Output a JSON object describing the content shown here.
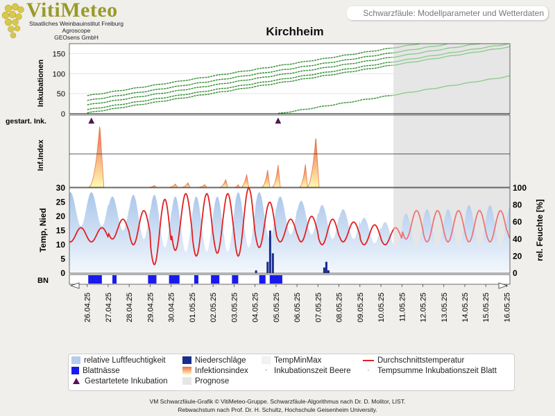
{
  "header": {
    "logo_text": "VitiMeteo",
    "logo_lines": [
      "Staatliches Weinbauinstitut Freiburg",
      "Agroscope",
      "GEOsens GmbH"
    ],
    "subtitle": "Schwarzfäule: Modellparameter und Wetterdaten",
    "title": "Kirchheim"
  },
  "panel_labels": {
    "inkubationen": "Inkubationen",
    "gestartet": "gestart. Ink.",
    "infindex": "Inf.Index",
    "temp": "Temp, Nied",
    "feuchte": "rel. Feuchte [%]",
    "bn": "BN"
  },
  "colors": {
    "humidity": "#b4cdec",
    "precip": "#1a2c8c",
    "leafwet": "#1a1aee",
    "temp_line": "#e02020",
    "temp_forecast": "#ec7474",
    "incubation": "#2e8b2e",
    "incubation_forecast": "#8fca8f",
    "infection_top": "#ee6a50",
    "infection_bottom": "#fffab0",
    "forecast_bg": "#e6e6e6",
    "marker": "#5a1060"
  },
  "chart_data": {
    "type": "line",
    "dates": [
      "26.04.25",
      "27.04.25",
      "28.04.25",
      "29.04.25",
      "30.04.25",
      "01.05.25",
      "02.05.25",
      "03.05.25",
      "04.05.25",
      "05.05.25",
      "06.05.25",
      "07.05.25",
      "08.05.25",
      "09.05.25",
      "10.05.25",
      "11.05.25",
      "12.05.25",
      "13.05.25",
      "14.05.25",
      "15.05.25",
      "16.05.25"
    ],
    "forecast_start_day": 14.6,
    "panels": {
      "incubations": {
        "yticks": [
          0,
          50,
          100,
          150
        ],
        "ylim": [
          0,
          175
        ],
        "series": [
          {
            "start": 0,
            "y0": 45,
            "slope": 8.2
          },
          {
            "start": 0,
            "y0": 33,
            "slope": 8.2
          },
          {
            "start": 0,
            "y0": 22,
            "slope": 8.2
          },
          {
            "start": 0,
            "y0": 10,
            "slope": 8.2
          },
          {
            "start": 0,
            "y0": 2,
            "slope": 8.2
          },
          {
            "start": 9.1,
            "y0": 0,
            "slope": 8.5
          }
        ]
      },
      "started_incubations": {
        "days": [
          0.2,
          9.1
        ]
      },
      "infection_index": {
        "ylim": [
          0,
          1
        ],
        "peaks": [
          {
            "day": 0.6,
            "value": 0.98,
            "width": 0.55
          },
          {
            "day": 3.2,
            "value": 0.03,
            "width": 0.25
          },
          {
            "day": 4.2,
            "value": 0.05,
            "width": 0.3
          },
          {
            "day": 4.8,
            "value": 0.07,
            "width": 0.3
          },
          {
            "day": 5.6,
            "value": 0.04,
            "width": 0.3
          },
          {
            "day": 6.6,
            "value": 0.12,
            "width": 0.3
          },
          {
            "day": 7.2,
            "value": 0.04,
            "width": 0.2
          },
          {
            "day": 7.6,
            "value": 0.2,
            "width": 0.3
          },
          {
            "day": 8.6,
            "value": 0.27,
            "width": 0.3
          },
          {
            "day": 9.1,
            "value": 0.35,
            "width": 0.3
          },
          {
            "day": 10.4,
            "value": 0.36,
            "width": 0.3
          },
          {
            "day": 10.9,
            "value": 0.8,
            "width": 0.45
          }
        ]
      },
      "weather": {
        "temp_yticks": [
          0,
          5,
          10,
          15,
          20,
          25,
          30
        ],
        "temp_ylim": [
          0,
          30
        ],
        "humidity_yticks": [
          0,
          20,
          40,
          60,
          80,
          100
        ],
        "humidity_ylim": [
          0,
          100
        ],
        "temp_min": [
          11,
          12,
          10,
          3,
          8,
          6,
          7,
          6,
          9,
          11,
          11,
          10,
          11,
          10,
          10,
          12,
          11,
          11,
          11,
          11,
          12
        ],
        "temp_max": [
          16,
          19,
          22,
          26,
          28,
          28,
          28,
          30,
          25,
          19,
          20,
          19,
          18,
          17,
          16,
          22,
          22,
          22,
          22,
          22,
          23
        ],
        "humidity_max": [
          95,
          90,
          92,
          92,
          90,
          90,
          90,
          95,
          95,
          90,
          85,
          80,
          75,
          65,
          60,
          70,
          75,
          75,
          80,
          80,
          80
        ],
        "humidity_min": [
          55,
          50,
          40,
          30,
          25,
          25,
          25,
          30,
          40,
          45,
          45,
          40,
          40,
          35,
          30,
          30,
          30,
          30,
          30,
          30,
          30
        ],
        "precipitation": [
          {
            "day": 8.05,
            "value": 1
          },
          {
            "day": 8.6,
            "value": 4
          },
          {
            "day": 8.72,
            "value": 15
          },
          {
            "day": 8.85,
            "value": 7
          },
          {
            "day": 11.3,
            "value": 2
          },
          {
            "day": 11.4,
            "value": 4
          },
          {
            "day": 11.5,
            "value": 1
          }
        ]
      },
      "leaf_wetness": {
        "intervals": [
          [
            0.05,
            0.7
          ],
          [
            1.2,
            1.4
          ],
          [
            2.9,
            3.3
          ],
          [
            3.9,
            4.4
          ],
          [
            5.1,
            5.3
          ],
          [
            5.9,
            6.3
          ],
          [
            6.9,
            7.2
          ],
          [
            8.2,
            8.5
          ],
          [
            8.7,
            9.3
          ]
        ]
      }
    }
  },
  "legend": {
    "items": [
      {
        "label": "relative Luftfeuchtigkeit",
        "symbol": "humidity"
      },
      {
        "label": "Niederschläge",
        "symbol": "precip"
      },
      {
        "label": "TempMinMax",
        "symbol": "tempminmax"
      },
      {
        "label": "Durchschnittstemperatur",
        "symbol": "temp"
      },
      {
        "label": "Blattnässe",
        "symbol": "leafwet"
      },
      {
        "label": "Infektionsindex",
        "symbol": "infindex"
      },
      {
        "label": "Inkubationszeit Beere",
        "symbol": "dot_red"
      },
      {
        "label": "Tempsumme Inkubationszeit Blatt",
        "symbol": "dot_green"
      },
      {
        "label": "Gestartetete Inkubation",
        "symbol": "marker"
      },
      {
        "label": "Prognose",
        "symbol": "prognose"
      }
    ]
  },
  "footer": {
    "line1": "VM Schwarzfäule-Grafik © VitiMeteo-Gruppe. Schwarzfäule-Algorithmus nach Dr. D. Molitor, LIST.",
    "line2": "Rebwachstum nach Prof. Dr. H. Schultz, Hochschule Geisenheim University."
  }
}
